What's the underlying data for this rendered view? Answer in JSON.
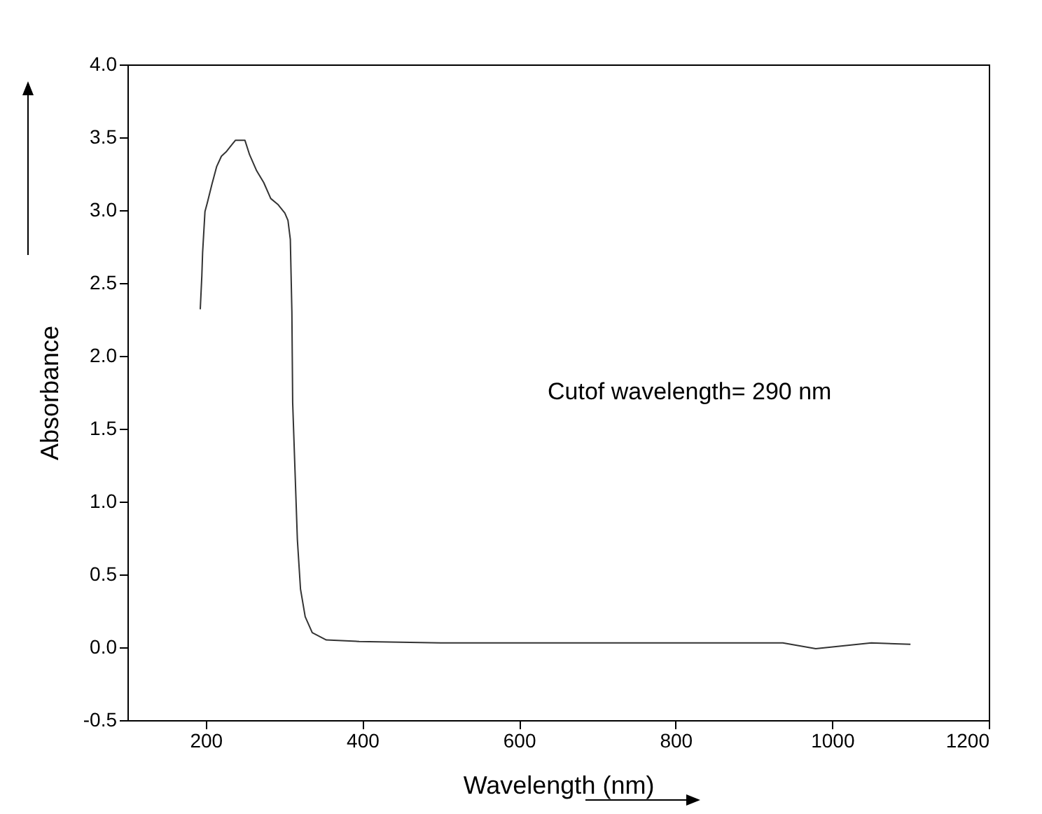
{
  "chart_data": {
    "type": "line",
    "xlabel": "Wavelength  (nm)",
    "ylabel": "Absorbance",
    "annotations": [
      "Cutof wavelength= 290 nm"
    ],
    "xlim": [
      100,
      1200
    ],
    "xticks": [
      200,
      400,
      600,
      800,
      1000,
      1200
    ],
    "ylim": [
      -0.5,
      4.0
    ],
    "yticks": [
      {
        "value": -0.5,
        "label": "-0.5"
      },
      {
        "value": 0,
        "label": "0.0"
      },
      0.5,
      {
        "value": 1,
        "label": "1.0"
      },
      1.5,
      {
        "value": 2,
        "label": "2.0"
      },
      2.5,
      {
        "value": 3,
        "label": "3.0"
      },
      3.5,
      {
        "value": 4,
        "label": "4.0"
      }
    ],
    "grid": false,
    "line_style": "solid",
    "series": [
      {
        "color": "#333333",
        "x": [
          193,
          195,
          196,
          199,
          202,
          208,
          214,
          220,
          226,
          232,
          238,
          244,
          250,
          256,
          265,
          274,
          283,
          292,
          301,
          305,
          308,
          310,
          311,
          314,
          317,
          321,
          327,
          336,
          354,
          396,
          500,
          700,
          937,
          979,
          1050,
          1100
        ],
        "values": [
          2.32,
          2.55,
          2.71,
          2.99,
          3.05,
          3.18,
          3.3,
          3.37,
          3.4,
          3.44,
          3.48,
          3.48,
          3.48,
          3.38,
          3.27,
          3.19,
          3.08,
          3.04,
          2.98,
          2.93,
          2.8,
          2.3,
          1.68,
          1.21,
          0.74,
          0.4,
          0.21,
          0.1,
          0.05,
          0.04,
          0.03,
          0.03,
          0.03,
          -0.01,
          0.03,
          0.02
        ]
      }
    ]
  }
}
